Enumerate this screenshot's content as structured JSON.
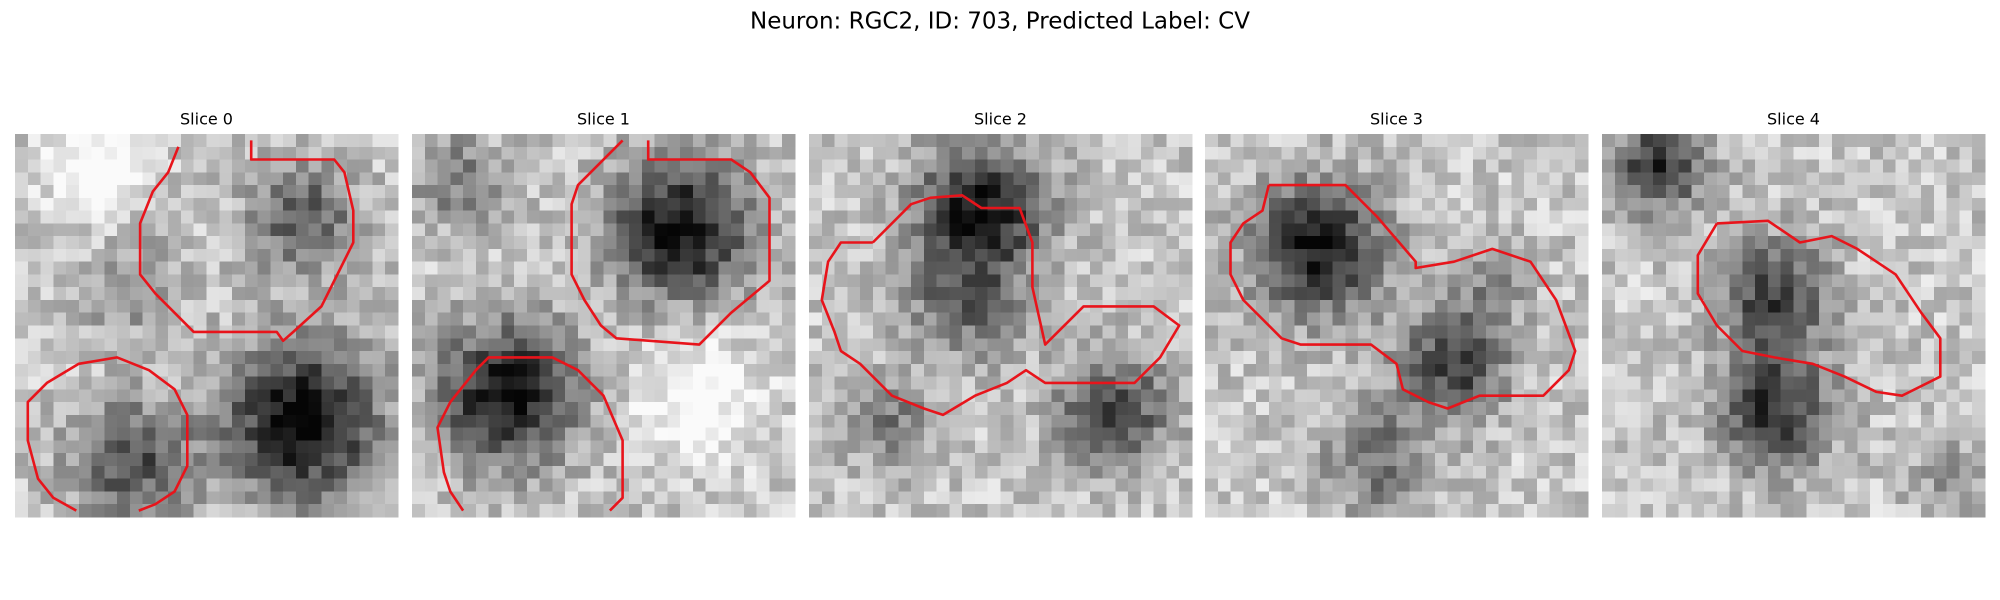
{
  "title": "Neuron: RGC2, ID: 703, Predicted Label: CV",
  "panels": [
    {
      "title": "Slice 0"
    },
    {
      "title": "Slice 1"
    },
    {
      "title": "Slice 2"
    },
    {
      "title": "Slice 3"
    },
    {
      "title": "Slice 4"
    }
  ]
}
